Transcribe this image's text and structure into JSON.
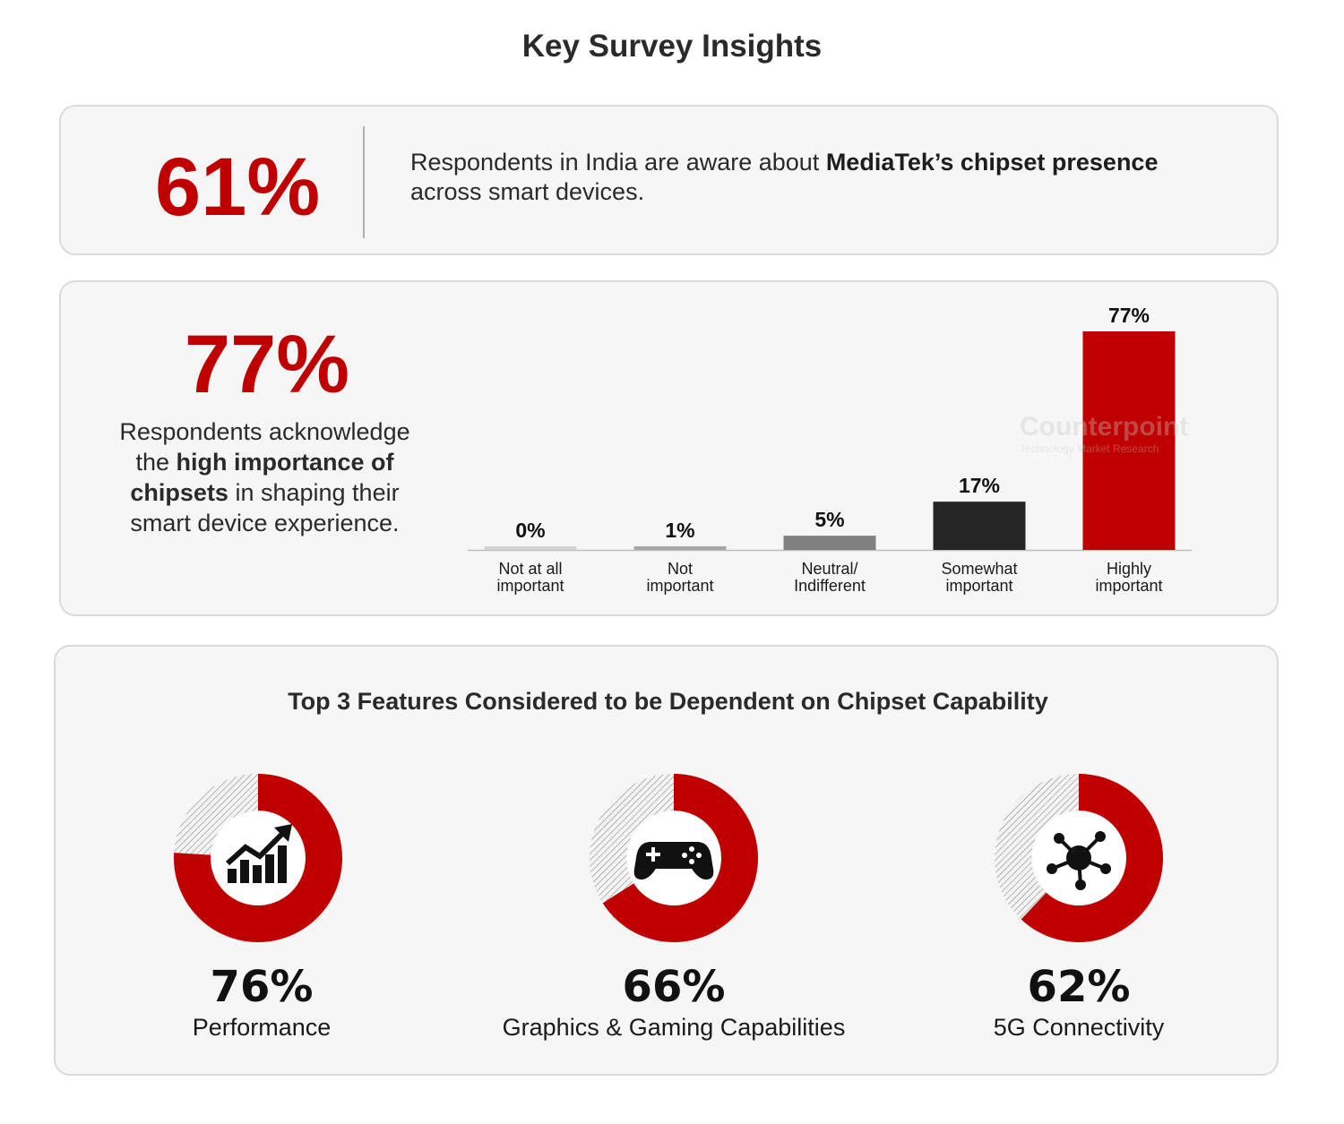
{
  "page": {
    "title": "Key Survey Insights"
  },
  "awareness": {
    "value_label": "61%",
    "text_before": "Respondents in India are aware about ",
    "text_bold": "MediaTek’s chipset presence",
    "text_after": " across smart devices."
  },
  "importance": {
    "value_label": "77%",
    "desc_1": "Respondents acknowledge the ",
    "desc_bold": "high importance of chipsets",
    "desc_2": " in shaping their smart device experience."
  },
  "features": {
    "title": "Top 3 Features Considered to be Dependent on Chipset Capability",
    "items": [
      {
        "label": "Performance",
        "value_label": "76%",
        "icon": "growth-chart-icon"
      },
      {
        "label": "Graphics & Gaming Capabilities",
        "value_label": "66%",
        "icon": "gamepad-icon"
      },
      {
        "label": "5G Connectivity",
        "value_label": "62%",
        "icon": "network-hub-icon"
      }
    ]
  },
  "watermark": {
    "text": "Counterpoint",
    "subtext": "Technology Market Research"
  },
  "chart_data": [
    {
      "type": "bar",
      "categories": [
        [
          "Not at all",
          "important"
        ],
        [
          "Not",
          "important"
        ],
        [
          "Neutral/",
          "Indifferent"
        ],
        [
          "Somewhat",
          "important"
        ],
        [
          "Highly",
          "important"
        ]
      ],
      "values": [
        0,
        1,
        5,
        17,
        77
      ],
      "data_labels": [
        "0%",
        "1%",
        "5%",
        "17%",
        "77%"
      ],
      "colors": [
        "#d4d4d4",
        "#a6a6a6",
        "#808080",
        "#262626",
        "#c00000"
      ],
      "ylim": [
        0,
        77
      ],
      "grid": false,
      "legend": "none"
    },
    {
      "type": "pie",
      "donut": true,
      "categories": [
        "Performance",
        "Graphics & Gaming Capabilities",
        "5G Connectivity"
      ],
      "values": [
        76,
        66,
        62
      ],
      "fill_color": "#c00000",
      "remainder": "hatched"
    }
  ]
}
